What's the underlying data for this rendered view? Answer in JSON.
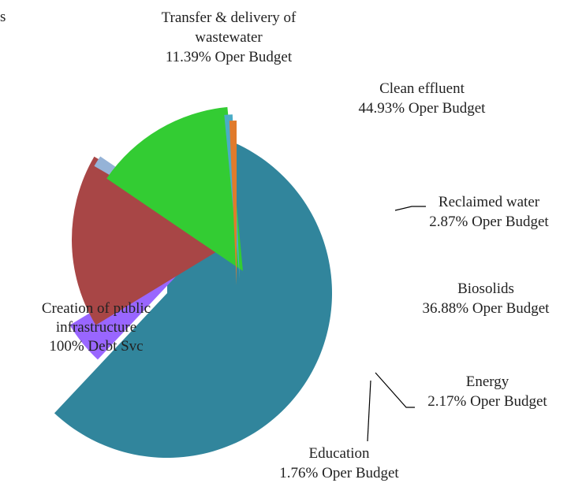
{
  "corner_text": "s",
  "chart_data": {
    "type": "pie",
    "title": "",
    "slices": [
      {
        "key": "debt",
        "label_lines": [
          "Creation of public",
          "infrastructure",
          "100% Debt Svc"
        ],
        "value": 62.0,
        "color": "#31859C"
      },
      {
        "key": "transfer",
        "label_lines": [
          "Transfer & delivery of",
          "wastewater",
          "11.39%  Oper Budget"
        ],
        "value": 4.3,
        "color": "#9966FF"
      },
      {
        "key": "clean",
        "label_lines": [
          "Clean effluent",
          "44.93% Oper Budget"
        ],
        "value": 17.1,
        "color": "#A84646"
      },
      {
        "key": "reclaimed",
        "label_lines": [
          "Reclaimed water",
          "2.87% Oper Budget"
        ],
        "value": 1.1,
        "color": "#95B3D7"
      },
      {
        "key": "biosolids",
        "label_lines": [
          "Biosolids",
          "36.88% Oper Budget"
        ],
        "value": 14.0,
        "color": "#33CC33"
      },
      {
        "key": "energy",
        "label_lines": [
          "Energy",
          "2.17% Oper Budget"
        ],
        "value": 0.8,
        "color": "#4BACC6"
      },
      {
        "key": "education",
        "label_lines": [
          "Education",
          "1.76% Oper Budget"
        ],
        "value": 0.7,
        "color": "#E07B2C"
      }
    ]
  }
}
